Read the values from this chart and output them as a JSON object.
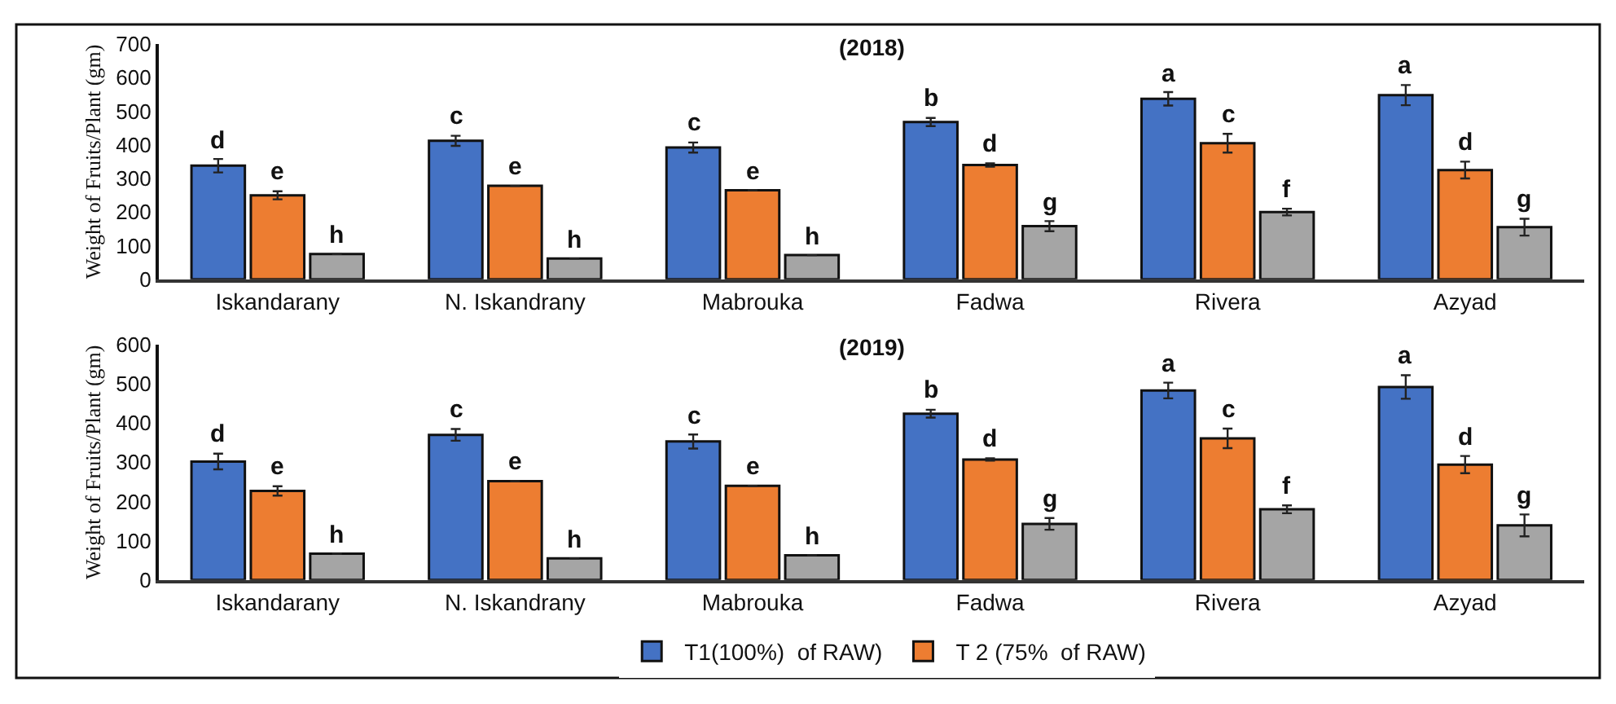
{
  "chart_data": [
    {
      "type": "bar",
      "title": "(2018)",
      "ylabel": "Weight of Fruits/Plant (gm)",
      "categories": [
        "Iskandarany",
        "N. Iskandrany",
        "Mabrouka",
        "Fadwa",
        "Rivera",
        "Azyad"
      ],
      "series": [
        {
          "color": "#4472c4",
          "values": [
            338,
            412,
            392,
            468,
            537,
            548
          ],
          "errors": [
            20,
            15,
            15,
            12,
            20,
            30
          ],
          "value_labels": [
            "d",
            "c",
            "c",
            "b",
            "a",
            "a"
          ]
        },
        {
          "color": "#ed7d31",
          "values": [
            250,
            278,
            265,
            340,
            405,
            325
          ],
          "errors": [
            12,
            null,
            null,
            5,
            28,
            25
          ],
          "value_labels": [
            "e",
            "e",
            "e",
            "d",
            "c",
            "d"
          ]
        },
        {
          "color": "#a5a5a5",
          "values": [
            75,
            62,
            72,
            158,
            200,
            155
          ],
          "errors": [
            null,
            null,
            null,
            15,
            10,
            25
          ],
          "value_labels": [
            "h",
            "h",
            "h",
            "g",
            "f",
            "g"
          ]
        }
      ],
      "ylim": [
        0,
        700
      ],
      "yticks": [
        0,
        100,
        200,
        300,
        400,
        500,
        600,
        700
      ]
    },
    {
      "type": "bar",
      "title": "(2019)",
      "ylabel": "Weight of Fruits/Plant (gm)",
      "categories": [
        "Iskandarany",
        "N. Iskandrany",
        "Mabrouka",
        "Fadwa",
        "Rivera",
        "Azyad"
      ],
      "series": [
        {
          "name": "T1(100%)  of RAW)",
          "color": "#4472c4",
          "values": [
            302,
            370,
            353,
            424,
            483,
            492
          ],
          "errors": [
            20,
            15,
            18,
            10,
            20,
            30
          ],
          "value_labels": [
            "d",
            "c",
            "c",
            "b",
            "a",
            "a"
          ]
        },
        {
          "name": "T 2 (75%  of RAW)",
          "color": "#ed7d31",
          "values": [
            227,
            252,
            240,
            307,
            361,
            294
          ],
          "errors": [
            12,
            null,
            null,
            3,
            25,
            22
          ],
          "value_labels": [
            "e",
            "e",
            "e",
            "d",
            "c",
            "d"
          ]
        },
        {
          "color": "#a5a5a5",
          "values": [
            67,
            55,
            63,
            143,
            180,
            139
          ],
          "errors": [
            null,
            null,
            null,
            15,
            10,
            28
          ],
          "value_labels": [
            "h",
            "h",
            "h",
            "g",
            "f",
            "g"
          ]
        }
      ],
      "ylim": [
        0,
        600
      ],
      "yticks": [
        0,
        100,
        200,
        300,
        400,
        500,
        600
      ],
      "legend": "bottom"
    }
  ]
}
